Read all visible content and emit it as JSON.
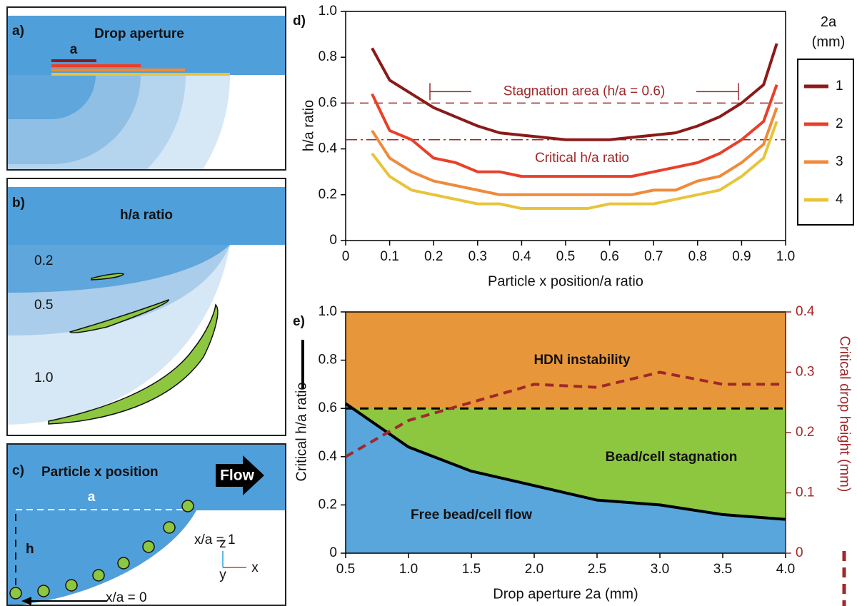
{
  "chart_data": [
    {
      "type": "line",
      "panel_label": "d)",
      "xlabel": "Particle x position/a ratio",
      "ylabel": "h/a ratio",
      "legend_title": "2a (mm)",
      "legend": "right",
      "x": [
        0.06,
        0.1,
        0.15,
        0.2,
        0.25,
        0.3,
        0.35,
        0.4,
        0.45,
        0.5,
        0.55,
        0.6,
        0.65,
        0.7,
        0.75,
        0.8,
        0.85,
        0.9,
        0.95,
        0.98
      ],
      "series": [
        {
          "name": "1",
          "color": "#8b1a1a",
          "values": [
            0.84,
            0.7,
            0.64,
            0.58,
            0.54,
            0.5,
            0.47,
            0.46,
            0.45,
            0.44,
            0.44,
            0.44,
            0.45,
            0.46,
            0.47,
            0.5,
            0.54,
            0.6,
            0.68,
            0.86
          ]
        },
        {
          "name": "2",
          "color": "#e8402a",
          "values": [
            0.64,
            0.48,
            0.44,
            0.36,
            0.34,
            0.3,
            0.3,
            0.28,
            0.28,
            0.28,
            0.28,
            0.28,
            0.28,
            0.3,
            0.32,
            0.34,
            0.38,
            0.44,
            0.52,
            0.68
          ]
        },
        {
          "name": "3",
          "color": "#f08a3a",
          "values": [
            0.48,
            0.36,
            0.3,
            0.26,
            0.24,
            0.22,
            0.2,
            0.2,
            0.2,
            0.2,
            0.2,
            0.2,
            0.2,
            0.22,
            0.22,
            0.26,
            0.28,
            0.34,
            0.42,
            0.58
          ]
        },
        {
          "name": "4",
          "color": "#e8c43a",
          "values": [
            0.38,
            0.28,
            0.22,
            0.2,
            0.18,
            0.16,
            0.16,
            0.14,
            0.14,
            0.14,
            0.14,
            0.16,
            0.16,
            0.16,
            0.18,
            0.2,
            0.22,
            0.28,
            0.36,
            0.52
          ]
        }
      ],
      "reference_lines": [
        {
          "value": 0.6,
          "label": "Stagnation area (h/a = 0.6)",
          "color": "#a0282a",
          "style": "dashed"
        },
        {
          "value": 0.44,
          "label": "Critical h/a ratio",
          "color": "#a0282a",
          "style": "dashdot"
        }
      ],
      "xlim": [
        0,
        1
      ],
      "ylim": [
        0,
        1
      ],
      "xticks": [
        0,
        0.1,
        0.2,
        0.3,
        0.4,
        0.5,
        0.6,
        0.7,
        0.8,
        0.9,
        {
          "value": 1,
          "label": "1.0"
        }
      ],
      "yticks": [
        0,
        0.2,
        0.4,
        0.6,
        0.8,
        {
          "value": 1,
          "label": "1.0"
        }
      ]
    },
    {
      "type": "line",
      "panel_label": "e)",
      "xlabel": "Drop aperture 2a (mm)",
      "ylabel": "Critical h/a ratio",
      "y2label": "Critical drop height (mm)",
      "x": [
        0.5,
        1,
        1.5,
        2,
        2.5,
        3,
        3.5,
        4
      ],
      "series": [
        {
          "color": "#000000",
          "style": "solid",
          "values": [
            0.62,
            0.44,
            0.34,
            0.28,
            0.22,
            0.2,
            0.16,
            0.14
          ]
        },
        {
          "color": "#a0282a",
          "style": "dashed",
          "axis": "y2",
          "values": [
            0.16,
            0.22,
            0.25,
            0.28,
            0.275,
            0.3,
            0.28,
            0.28
          ]
        }
      ],
      "reference_lines": [
        {
          "value": 0.6,
          "color": "#000000",
          "style": "dashed"
        }
      ],
      "region_colors": [
        "#e8963a",
        "#8dc63f",
        "#58a6dc"
      ],
      "annotations": [
        "HDN instability",
        "Bead/cell stagnation",
        "Free bead/cell flow"
      ],
      "xlim": [
        0.5,
        4
      ],
      "ylim": [
        0,
        1
      ],
      "y2lim": [
        0,
        0.4
      ],
      "xticks": [
        0.5,
        {
          "value": 1,
          "label": "1.0"
        },
        1.5,
        {
          "value": 2,
          "label": "2.0"
        },
        2.5,
        {
          "value": 3,
          "label": "3.0"
        },
        3.5,
        {
          "value": 4,
          "label": "4.0"
        }
      ],
      "yticks": [
        0,
        0.2,
        0.4,
        0.6,
        0.8,
        {
          "value": 1,
          "label": "1.0"
        }
      ],
      "y2ticks": [
        0,
        0.1,
        0.2,
        0.3,
        0.4
      ]
    }
  ],
  "diagrams": {
    "a": {
      "label": "a)",
      "title": "Drop aperture",
      "aperture": "a"
    },
    "b": {
      "label": "b)",
      "title": "h/a ratio",
      "levels": [
        "0.2",
        "0.5",
        "1.0"
      ]
    },
    "c": {
      "label": "c)",
      "title": "Particle x position",
      "flow": "Flow",
      "width": "a",
      "height": "h",
      "end": "x/a = 1",
      "start": "x/a = 0",
      "axis_z": "z",
      "axis_y": "y",
      "axis_x": "x"
    }
  }
}
